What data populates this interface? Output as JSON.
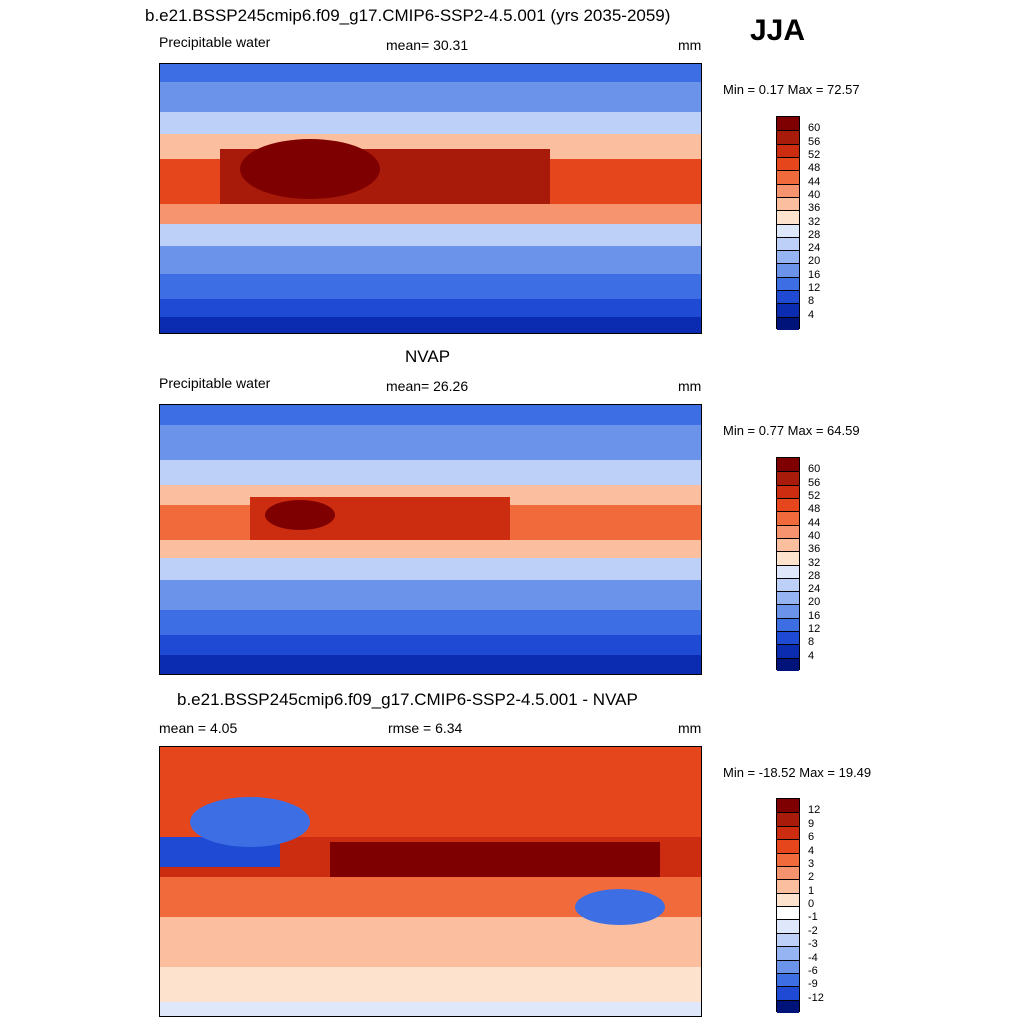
{
  "season": "JJA",
  "panels": [
    {
      "title": "b.e21.BSSP245cmip6.f09_g17.CMIP6-SSP2-4.5.001 (yrs 2035-2059)",
      "left_label": "Precipitable water",
      "center_label": "mean=  30.31",
      "units": "mm",
      "minmax": "Min =   0.17 Max =  72.57",
      "colorbar_ticks": [
        "60",
        "56",
        "52",
        "48",
        "44",
        "40",
        "36",
        "32",
        "28",
        "24",
        "20",
        "16",
        "12",
        "8",
        "4"
      ]
    },
    {
      "title": "NVAP",
      "left_label": "Precipitable water",
      "center_label": "mean=  26.26",
      "units": "mm",
      "minmax": "Min =   0.77 Max =  64.59",
      "colorbar_ticks": [
        "60",
        "56",
        "52",
        "48",
        "44",
        "40",
        "36",
        "32",
        "28",
        "24",
        "20",
        "16",
        "12",
        "8",
        "4"
      ]
    },
    {
      "title": "b.e21.BSSP245cmip6.f09_g17.CMIP6-SSP2-4.5.001 - NVAP",
      "left_label": "mean =   4.05",
      "center_label": "rmse =   6.34",
      "units": "mm",
      "minmax": "Min = -18.52 Max =  19.49",
      "colorbar_ticks": [
        "12",
        "9",
        "6",
        "4",
        "3",
        "2",
        "1",
        "0",
        "-1",
        "-2",
        "-3",
        "-4",
        "-6",
        "-9",
        "-12"
      ]
    }
  ],
  "colors": {
    "abs_scale": [
      "#7f0000",
      "#a81a0a",
      "#cc2c10",
      "#e6461c",
      "#f06a3c",
      "#f79470",
      "#fbbf9f",
      "#fde2cd",
      "#dfe8fb",
      "#bcd0f8",
      "#95b4f1",
      "#6b93ea",
      "#3e6ee3",
      "#1f4ad3",
      "#0b2bb0",
      "#00137a"
    ],
    "diff_scale": [
      "#7f0000",
      "#a81a0a",
      "#cc2c10",
      "#e6461c",
      "#f06a3c",
      "#f79470",
      "#fbbf9f",
      "#fde2cd",
      "#ffffff",
      "#dfe8fb",
      "#bcd0f8",
      "#95b4f1",
      "#6b93ea",
      "#3e6ee3",
      "#1f4ad3",
      "#00137a"
    ]
  }
}
